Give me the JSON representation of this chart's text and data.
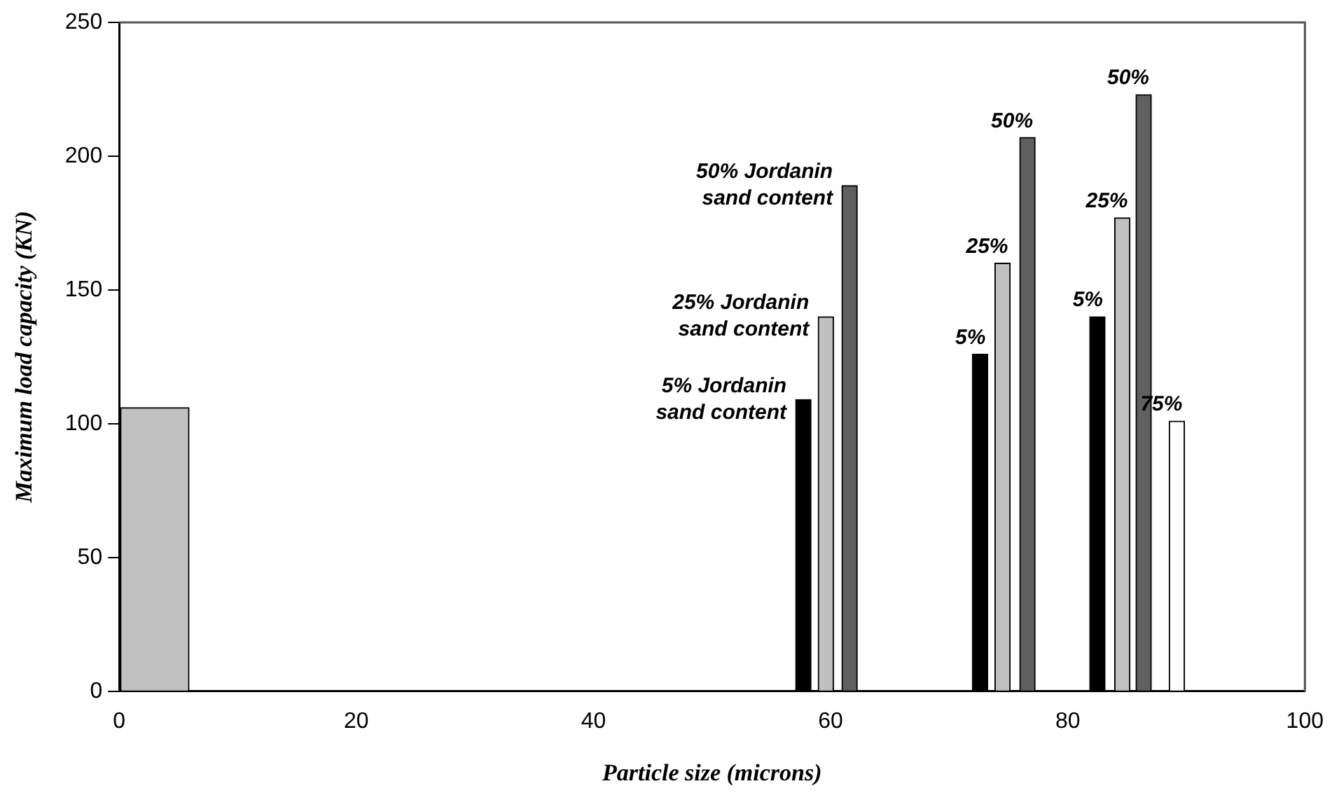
{
  "chart_data": {
    "type": "bar",
    "xlabel": "Particle size (microns)",
    "ylabel": "Maximum load capacity (KN)",
    "xlim": [
      0,
      100
    ],
    "xticks": [
      0,
      20,
      40,
      60,
      80,
      100
    ],
    "ylim": [
      0,
      250
    ],
    "yticks": [
      0,
      50,
      100,
      150,
      200,
      250
    ],
    "grid": false,
    "legend": false,
    "series": [
      {
        "color": "#c0c0c0",
        "x": [
          3
        ],
        "values": [
          106
        ]
      },
      {
        "color": "#000000",
        "x": [
          57.7,
          72.6,
          82.5
        ],
        "values": [
          109,
          126,
          140
        ]
      },
      {
        "color": "#c0c0c0",
        "x": [
          59.6,
          74.5,
          84.6
        ],
        "values": [
          140,
          160,
          177
        ]
      },
      {
        "color": "#606060",
        "x": [
          61.6,
          76.6,
          86.4
        ],
        "values": [
          189,
          207,
          223
        ]
      },
      {
        "color": "#ffffff",
        "x": [
          89.2
        ],
        "values": [
          101
        ]
      }
    ],
    "annotations": [
      {
        "text": "50% Jordanin\nsand content",
        "x": 61.6,
        "y": 189
      },
      {
        "text": "25% Jordanin\nsand content",
        "x": 59.6,
        "y": 140
      },
      {
        "text": "5% Jordanin\nsand content",
        "x": 57.7,
        "y": 109
      },
      {
        "text": "5%",
        "x": 72.6,
        "y": 126
      },
      {
        "text": "25%",
        "x": 74.5,
        "y": 160
      },
      {
        "text": "50%",
        "x": 76.6,
        "y": 207
      },
      {
        "text": "5%",
        "x": 82.5,
        "y": 140
      },
      {
        "text": "25%",
        "x": 84.6,
        "y": 177
      },
      {
        "text": "50%",
        "x": 86.4,
        "y": 223
      },
      {
        "text": "75%",
        "x": 89.2,
        "y": 101
      }
    ]
  }
}
